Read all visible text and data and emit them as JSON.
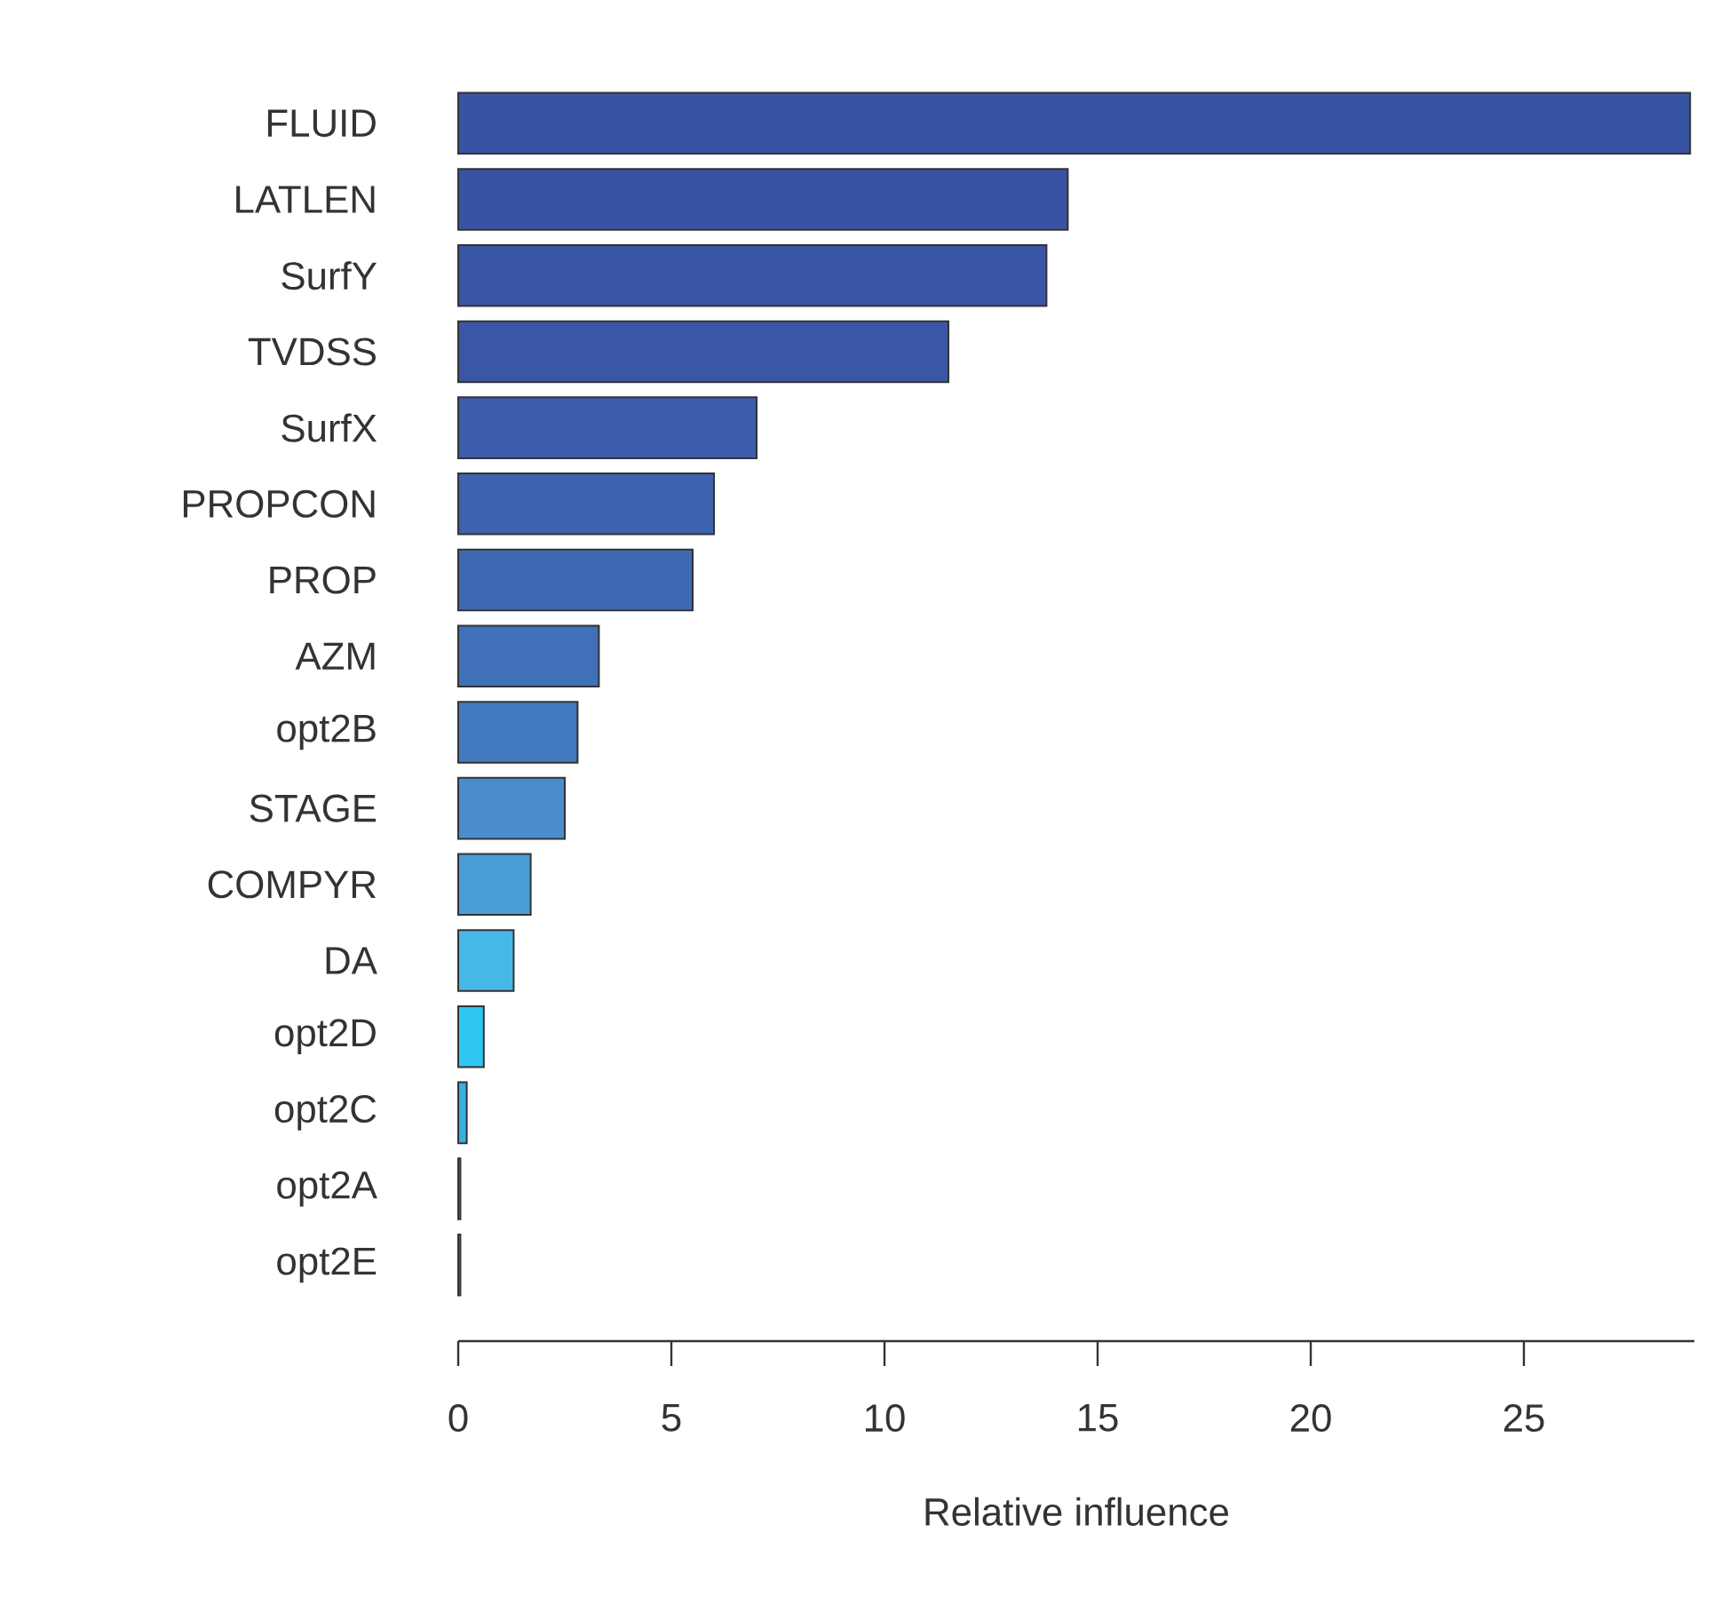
{
  "chart_data": {
    "type": "bar",
    "orientation": "horizontal",
    "xlabel": "Relative influence",
    "categories": [
      "FLUID",
      "LATLEN",
      "SurfY",
      "TVDSS",
      "SurfX",
      "PROPCON",
      "PROP",
      "AZM",
      "opt2B",
      "STAGE",
      "COMPYR",
      "DA",
      "opt2D",
      "opt2C",
      "opt2A",
      "opt2E"
    ],
    "values": [
      28.9,
      14.3,
      13.8,
      11.5,
      7.0,
      6.0,
      5.5,
      3.3,
      2.8,
      2.5,
      1.7,
      1.3,
      0.6,
      0.2,
      0.05,
      0.05
    ],
    "colors": [
      "#3953a4",
      "#3953a4",
      "#3a55a5",
      "#3a57a7",
      "#3c5dab",
      "#3d62ae",
      "#3f6ab3",
      "#4070b8",
      "#4379be",
      "#4a8dcc",
      "#4a9ed8",
      "#45b8e8",
      "#2fc6f2",
      "#35b0e0",
      "#888888",
      "#888888"
    ],
    "xlim": [
      0,
      29
    ],
    "xticks": [
      0,
      5,
      10,
      15,
      20,
      25
    ]
  }
}
